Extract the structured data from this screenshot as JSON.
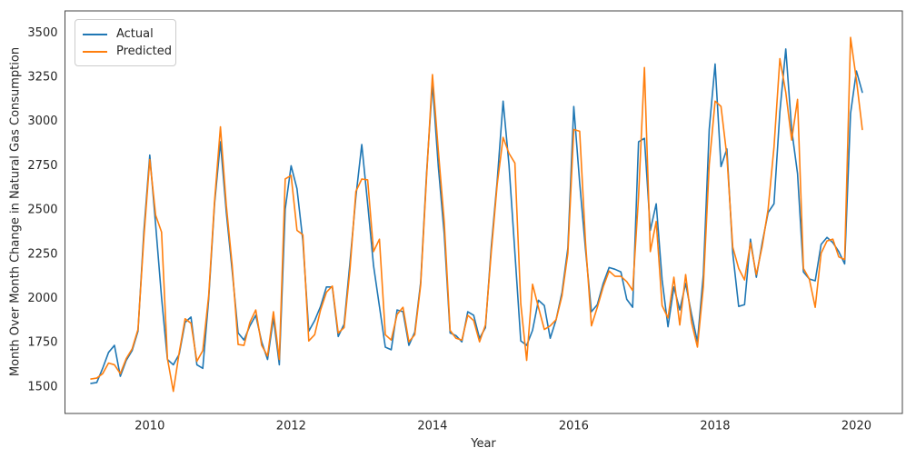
{
  "chart_data": {
    "type": "line",
    "title": "",
    "xlabel": "Year",
    "ylabel": "Month Over Month Change in Natural Gas Consumption",
    "grid": false,
    "background": "#ffffff",
    "axis_edge_color": "#444444",
    "tick_label_color": "#262626",
    "x_ticks": [
      2010,
      2012,
      2014,
      2016,
      2018,
      2020
    ],
    "y_ticks": [
      1500,
      1750,
      2000,
      2250,
      2500,
      2750,
      3000,
      3250,
      3500
    ],
    "xlim": [
      2008.8,
      2020.65
    ],
    "ylim": [
      1345,
      3620
    ],
    "legend": {
      "position": "upper-left",
      "entries": [
        "Actual",
        "Predicted"
      ]
    },
    "months": [
      "2009-03",
      "2009-04",
      "2009-05",
      "2009-06",
      "2009-07",
      "2009-08",
      "2009-09",
      "2009-10",
      "2009-11",
      "2009-12",
      "2010-01",
      "2010-02",
      "2010-03",
      "2010-04",
      "2010-05",
      "2010-06",
      "2010-07",
      "2010-08",
      "2010-09",
      "2010-10",
      "2010-11",
      "2010-12",
      "2011-01",
      "2011-02",
      "2011-03",
      "2011-04",
      "2011-05",
      "2011-06",
      "2011-07",
      "2011-08",
      "2011-09",
      "2011-10",
      "2011-11",
      "2011-12",
      "2012-01",
      "2012-02",
      "2012-03",
      "2012-04",
      "2012-05",
      "2012-06",
      "2012-07",
      "2012-08",
      "2012-09",
      "2012-10",
      "2012-11",
      "2012-12",
      "2013-01",
      "2013-02",
      "2013-03",
      "2013-04",
      "2013-05",
      "2013-06",
      "2013-07",
      "2013-08",
      "2013-09",
      "2013-10",
      "2013-11",
      "2013-12",
      "2014-01",
      "2014-02",
      "2014-03",
      "2014-04",
      "2014-05",
      "2014-06",
      "2014-07",
      "2014-08",
      "2014-09",
      "2014-10",
      "2014-11",
      "2014-12",
      "2015-01",
      "2015-02",
      "2015-03",
      "2015-04",
      "2015-05",
      "2015-06",
      "2015-07",
      "2015-08",
      "2015-09",
      "2015-10",
      "2015-11",
      "2015-12",
      "2016-01",
      "2016-02",
      "2016-03",
      "2016-04",
      "2016-05",
      "2016-06",
      "2016-07",
      "2016-08",
      "2016-09",
      "2016-10",
      "2016-11",
      "2016-12",
      "2017-01",
      "2017-02",
      "2017-03",
      "2017-04",
      "2017-05",
      "2017-06",
      "2017-07",
      "2017-08",
      "2017-09",
      "2017-10",
      "2017-11",
      "2017-12",
      "2018-01",
      "2018-02",
      "2018-03",
      "2018-04",
      "2018-05",
      "2018-06",
      "2018-07",
      "2018-08",
      "2018-09",
      "2018-10",
      "2018-11",
      "2018-12",
      "2019-01",
      "2019-02",
      "2019-03",
      "2019-04",
      "2019-05",
      "2019-06",
      "2019-07",
      "2019-08",
      "2019-09",
      "2019-10",
      "2019-11",
      "2019-12",
      "2020-01",
      "2020-02"
    ],
    "series": [
      {
        "name": "Actual",
        "color": "#1f77b4",
        "values": [
          1515,
          1520,
          1600,
          1690,
          1730,
          1555,
          1645,
          1700,
          1810,
          2375,
          2805,
          2410,
          2000,
          1650,
          1620,
          1680,
          1860,
          1890,
          1620,
          1600,
          1990,
          2530,
          2880,
          2480,
          2150,
          1800,
          1760,
          1840,
          1900,
          1750,
          1650,
          1885,
          1620,
          2500,
          2745,
          2615,
          2320,
          1810,
          1870,
          1950,
          2060,
          2060,
          1780,
          1850,
          2200,
          2570,
          2865,
          2530,
          2180,
          1950,
          1720,
          1705,
          1930,
          1920,
          1730,
          1805,
          2085,
          2700,
          3210,
          2740,
          2360,
          1800,
          1785,
          1750,
          1920,
          1900,
          1770,
          1830,
          2290,
          2660,
          3110,
          2750,
          2255,
          1755,
          1730,
          1815,
          1985,
          1955,
          1770,
          1875,
          2030,
          2280,
          3080,
          2650,
          2270,
          1920,
          1960,
          2080,
          2170,
          2160,
          2145,
          1990,
          1945,
          2880,
          2900,
          2380,
          2530,
          2100,
          1835,
          2060,
          1930,
          2080,
          1905,
          1750,
          2130,
          2950,
          3320,
          2740,
          2840,
          2250,
          1950,
          1960,
          2330,
          2115,
          2310,
          2480,
          2530,
          3050,
          3405,
          2950,
          2700,
          2145,
          2105,
          2095,
          2300,
          2340,
          2310,
          2260,
          2190,
          3040,
          3280,
          3160
        ]
      },
      {
        "name": "Predicted",
        "color": "#ff7f0e",
        "values": [
          1540,
          1545,
          1570,
          1630,
          1620,
          1570,
          1655,
          1710,
          1820,
          2340,
          2780,
          2465,
          2370,
          1655,
          1470,
          1690,
          1880,
          1855,
          1640,
          1700,
          2010,
          2545,
          2965,
          2520,
          2180,
          1735,
          1730,
          1860,
          1930,
          1730,
          1670,
          1920,
          1650,
          2670,
          2690,
          2380,
          2355,
          1755,
          1790,
          1930,
          2030,
          2065,
          1800,
          1830,
          2160,
          2600,
          2670,
          2665,
          2260,
          2330,
          1790,
          1760,
          1905,
          1945,
          1750,
          1790,
          2070,
          2680,
          3260,
          2830,
          2430,
          1815,
          1770,
          1760,
          1900,
          1870,
          1750,
          1845,
          2260,
          2640,
          2905,
          2815,
          2760,
          1965,
          1645,
          2075,
          1945,
          1820,
          1840,
          1875,
          2010,
          2250,
          2950,
          2940,
          2310,
          1840,
          1945,
          2060,
          2150,
          2120,
          2120,
          2090,
          2040,
          2570,
          3300,
          2260,
          2430,
          1955,
          1885,
          2115,
          1845,
          2130,
          1860,
          1720,
          2060,
          2750,
          3110,
          3080,
          2800,
          2285,
          2165,
          2100,
          2310,
          2130,
          2290,
          2500,
          2850,
          3350,
          3160,
          2890,
          3120,
          2165,
          2105,
          1945,
          2250,
          2320,
          2330,
          2230,
          2215,
          3470,
          3230,
          2950
        ]
      }
    ]
  }
}
